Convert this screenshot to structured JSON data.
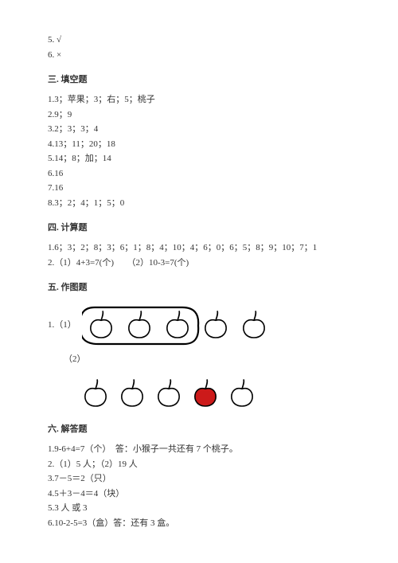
{
  "top": {
    "l1": "5. √",
    "l2": "6. ×"
  },
  "s3": {
    "title": "三. 填空题",
    "items": [
      "1.3；苹果；3；右；5；桃子",
      "2.9；9",
      "3.2；3；3；4",
      "4.13；11；20；18",
      "5.14；8；加；14",
      "6.16",
      "7.16",
      "8.3；2；4；1；5；0"
    ]
  },
  "s4": {
    "title": "四. 计算题",
    "items": [
      "1.6；3；2；8；3；6；1；8；4；10；4；6；0；6；5；8；9；10；7；1",
      "2.（1）4+3=7(个)　　（2）10-3=7(个)"
    ]
  },
  "s5": {
    "title": "五. 作图题",
    "label1": "1.（1）",
    "label2": "（2）",
    "fig1": {
      "apples": 5,
      "circled": 3,
      "outline": "#000000",
      "fill": "#ffffff",
      "ring": "#000000"
    },
    "fig2": {
      "apples": 5,
      "redIndex": 3,
      "outline": "#000000",
      "fill": "#ffffff",
      "red": "#cc1a1a"
    }
  },
  "s6": {
    "title": "六. 解答题",
    "items": [
      "1.9-6+4=7（个）　答：小猴子一共还有 7 个桃子。",
      "2.（1）5 人；（2）19 人",
      "3.7－5＝2（只）",
      "4.5＋3－4＝4（块）",
      "5.3 人  或 3",
      "6.10-2-5=3（盒）答：还有 3 盒。"
    ]
  }
}
